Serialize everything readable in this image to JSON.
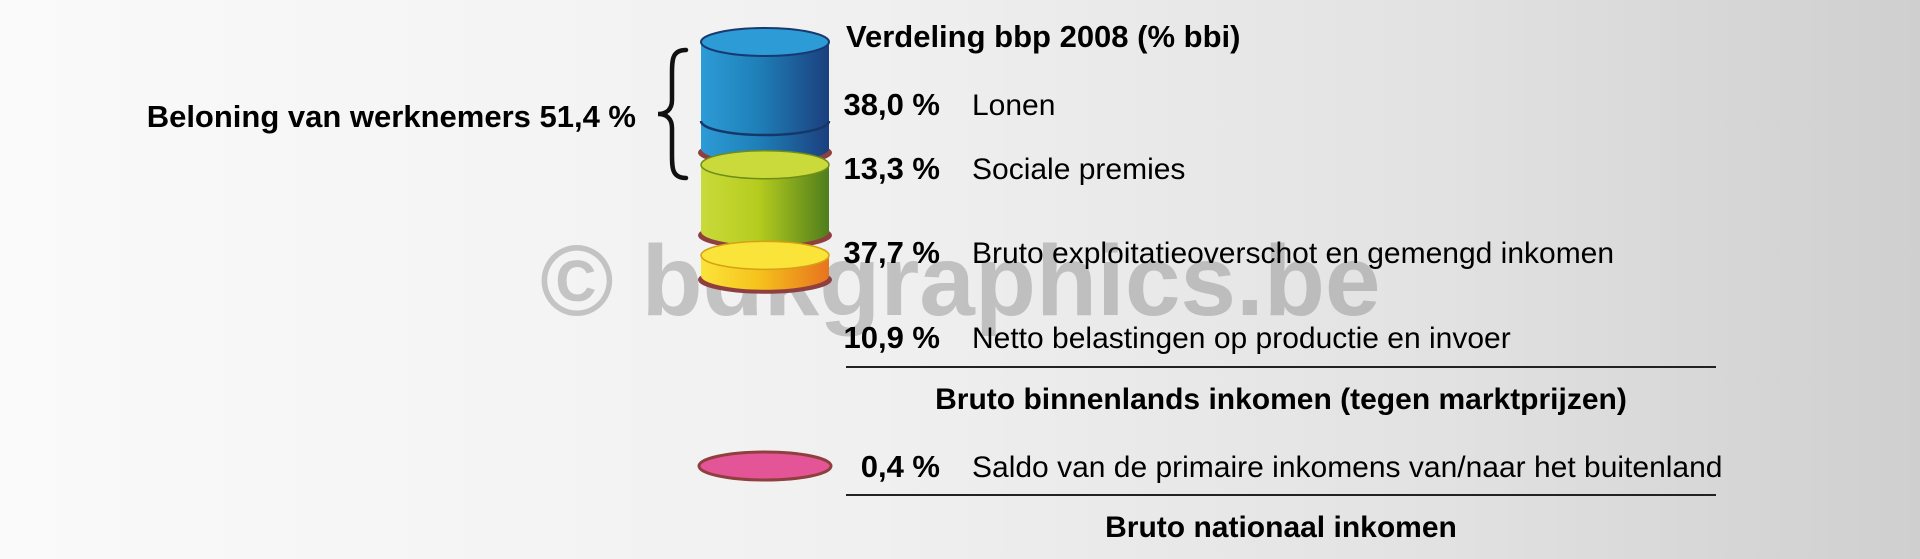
{
  "chart_data": {
    "type": "stacked-cylinder",
    "title": "Verdeling bbp 2008 (% bbi)",
    "segments": [
      {
        "value": 38.0,
        "value_label": "38,0 %",
        "label": "Lonen",
        "color": "#1f7fb8",
        "color_dark": "#1b3f7e",
        "color_top": "#2d9bd6"
      },
      {
        "value": 13.3,
        "value_label": "13,3 %",
        "label": "Sociale premies",
        "color": "#1f7fb8",
        "color_dark": "#1b3f7e",
        "color_top": "#2d9bd6"
      },
      {
        "value": 37.7,
        "value_label": "37,7 %",
        "label": "Bruto exploitatieoverschot en gemengd inkomen",
        "color": "#b5cc1e",
        "color_dark": "#4f7d1c",
        "color_top": "#c9da3a"
      },
      {
        "value": 10.9,
        "value_label": "10,9 %",
        "label": "Netto belastingen op productie en invoer",
        "color": "#f5c21c",
        "color_dark": "#e8731e",
        "color_top": "#fbe43a"
      }
    ],
    "group": {
      "label": "Beloning van werknemers 51,4 %",
      "value": 51.4,
      "members": [
        "Lonen",
        "Sociale premies"
      ]
    },
    "subtotal_1": "Bruto binnenlands inkomen (tegen marktprijzen)",
    "extra": {
      "value": 0.4,
      "value_label": "0,4 %",
      "label": "Saldo van de primaire inkomens van/naar het buitenland",
      "color": "#e35596"
    },
    "subtotal_2": "Bruto nationaal inkomen"
  },
  "watermark": "© bdkgraphics.be",
  "colors": {
    "rim": "#8f3f3f",
    "line": "#222222"
  }
}
